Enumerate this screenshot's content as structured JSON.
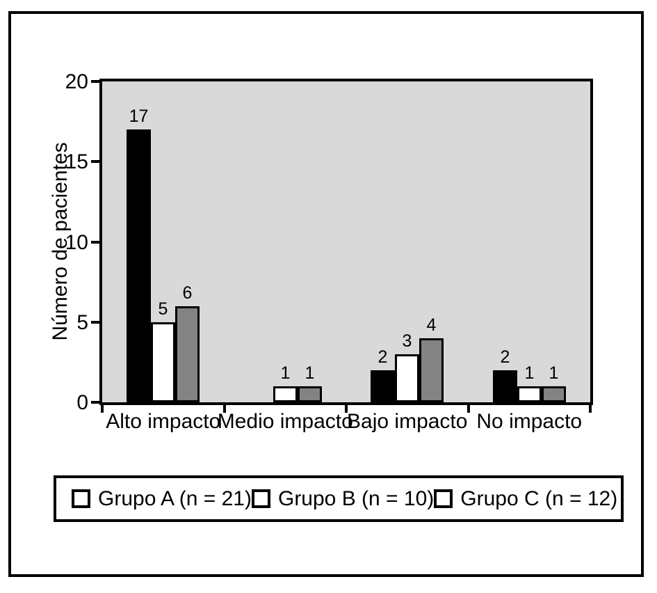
{
  "chart_data": {
    "type": "bar",
    "title": "",
    "xlabel": "",
    "ylabel": "Número de pacientes",
    "categories": [
      "Alto impacto",
      "Medio impacto",
      "Bajo impacto",
      "No impacto"
    ],
    "series": [
      {
        "name": "Grupo A (n = 21)",
        "color": "#000000",
        "values": [
          17,
          0,
          2,
          2
        ]
      },
      {
        "name": "Grupo B (n = 10)",
        "color": "#ffffff",
        "values": [
          5,
          1,
          3,
          1
        ]
      },
      {
        "name": "Grupo C (n = 12)",
        "color": "#838383",
        "values": [
          6,
          1,
          4,
          1
        ]
      }
    ],
    "ylim": [
      0,
      20
    ],
    "yticks": [
      0,
      5,
      10,
      15,
      20
    ],
    "bar_value_labels": true,
    "zero_bars_hidden": true,
    "grid": "off",
    "legend_position": "bottom",
    "plot_background": "#d9d9d9",
    "legend_swatch_fill": "#ffffff",
    "frame_color": "#000000"
  }
}
